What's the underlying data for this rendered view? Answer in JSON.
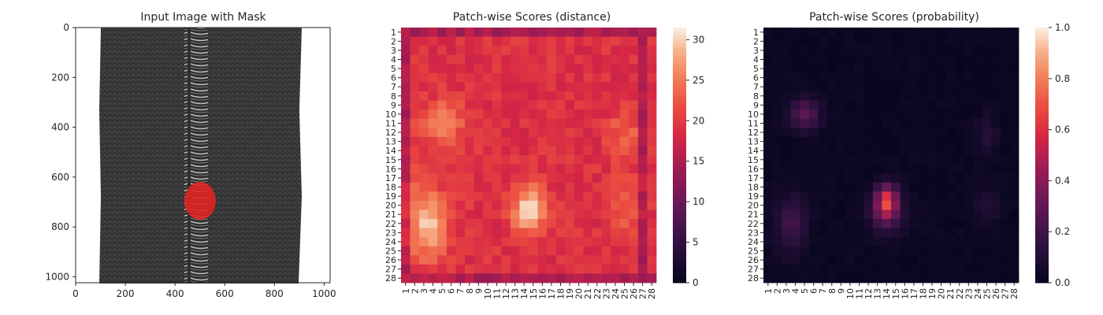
{
  "panels": [
    {
      "title": "Input Image with Mask"
    },
    {
      "title": "Patch-wise Scores (distance)"
    },
    {
      "title": "Patch-wise Scores (probability)"
    }
  ],
  "image_panel": {
    "x_ticks": [
      0,
      200,
      400,
      600,
      800,
      1000
    ],
    "y_ticks": [
      0,
      200,
      400,
      600,
      800,
      1000
    ],
    "extent": [
      1024,
      1024
    ],
    "mask_color": "#e02424",
    "fabric_color": "#3a3a3a"
  },
  "colorbars": [
    {
      "ticks": [
        0,
        5,
        10,
        15,
        20,
        25,
        30
      ],
      "vmax": 31.5
    },
    {
      "ticks": [
        "0.0",
        "0.2",
        "0.4",
        "0.6",
        "0.8",
        "1.0"
      ],
      "vmax": 1.0
    }
  ],
  "chart_data": [
    {
      "type": "heatmap",
      "title": "Patch-wise Scores (distance)",
      "rows": 28,
      "cols": 28,
      "x_tick_labels": [
        "1",
        "2",
        "3",
        "4",
        "5",
        "6",
        "7",
        "8",
        "9",
        "10",
        "11",
        "12",
        "13",
        "14",
        "15",
        "16",
        "17",
        "18",
        "19",
        "20",
        "21",
        "22",
        "23",
        "24",
        "25",
        "26",
        "27",
        "28"
      ],
      "y_tick_labels": [
        "1",
        "2",
        "3",
        "4",
        "5",
        "6",
        "7",
        "8",
        "9",
        "10",
        "11",
        "12",
        "13",
        "14",
        "15",
        "16",
        "17",
        "18",
        "19",
        "20",
        "21",
        "22",
        "23",
        "24",
        "25",
        "26",
        "27",
        "28"
      ],
      "colormap": "rocket",
      "vmin": 0,
      "vmax": 31.5
    },
    {
      "type": "heatmap",
      "title": "Patch-wise Scores (probability)",
      "rows": 28,
      "cols": 28,
      "x_tick_labels": [
        "1",
        "2",
        "3",
        "4",
        "5",
        "6",
        "7",
        "8",
        "9",
        "10",
        "11",
        "12",
        "13",
        "14",
        "15",
        "16",
        "17",
        "18",
        "19",
        "20",
        "21",
        "22",
        "23",
        "24",
        "25",
        "26",
        "27",
        "28"
      ],
      "y_tick_labels": [
        "1",
        "2",
        "3",
        "4",
        "5",
        "6",
        "7",
        "8",
        "9",
        "10",
        "11",
        "12",
        "13",
        "14",
        "15",
        "16",
        "17",
        "18",
        "19",
        "20",
        "21",
        "22",
        "23",
        "24",
        "25",
        "26",
        "27",
        "28"
      ],
      "colormap": "rocket",
      "vmin": 0.0,
      "vmax": 1.0
    }
  ]
}
